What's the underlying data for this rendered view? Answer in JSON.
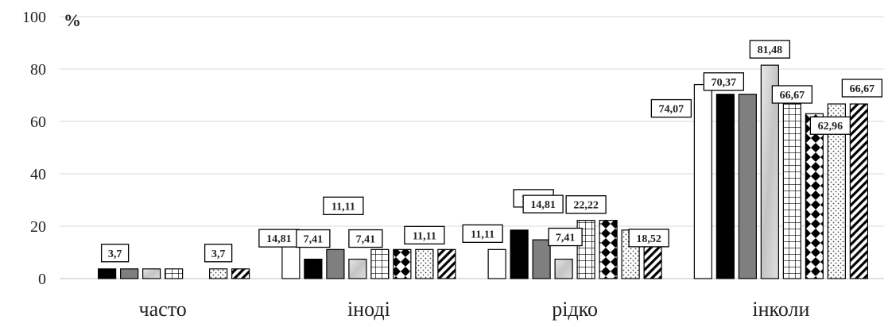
{
  "chart_data": {
    "type": "bar",
    "title": "",
    "ylabel": "%",
    "xlabel": "",
    "ylim": [
      0,
      100
    ],
    "yticks": [
      "0",
      "20",
      "40",
      "60",
      "80",
      "100"
    ],
    "grid": true,
    "legend": "none",
    "categories": [
      "часто",
      "іноді",
      "рідко",
      "інколи"
    ],
    "series": [
      {
        "values": [
          0,
          14.81,
          11.11,
          74.07
        ],
        "labels": [
          "",
          "14,81",
          "11,11",
          "74,07"
        ],
        "pattern": "white"
      },
      {
        "values": [
          3.7,
          7.41,
          18.52,
          70.37
        ],
        "labels": [
          "3,7",
          "7,41",
          "18,52",
          "70,37"
        ],
        "pattern": "black"
      },
      {
        "values": [
          3.7,
          11.11,
          14.81,
          70.37
        ],
        "labels": [
          "",
          "11,11",
          "14,81",
          ""
        ],
        "pattern": "gray"
      },
      {
        "values": [
          3.7,
          7.41,
          7.41,
          81.48
        ],
        "labels": [
          "",
          "7,41",
          "7,41",
          "81,48"
        ],
        "pattern": "marble"
      },
      {
        "values": [
          3.7,
          11.11,
          22.22,
          66.67
        ],
        "labels": [
          "",
          "",
          "22,22",
          "66,67"
        ],
        "pattern": "grid"
      },
      {
        "values": [
          0,
          11.11,
          22.22,
          62.96
        ],
        "labels": [
          "",
          "11,11",
          "",
          "62,96"
        ],
        "pattern": "diamond"
      },
      {
        "values": [
          3.7,
          11.11,
          18.52,
          66.67
        ],
        "labels": [
          "3,7",
          "",
          "",
          "66,67"
        ],
        "pattern": "dots"
      },
      {
        "values": [
          3.7,
          11.11,
          18.52,
          66.67
        ],
        "labels": [
          "",
          "",
          "18,52",
          ""
        ],
        "pattern": "diagonal"
      }
    ]
  }
}
